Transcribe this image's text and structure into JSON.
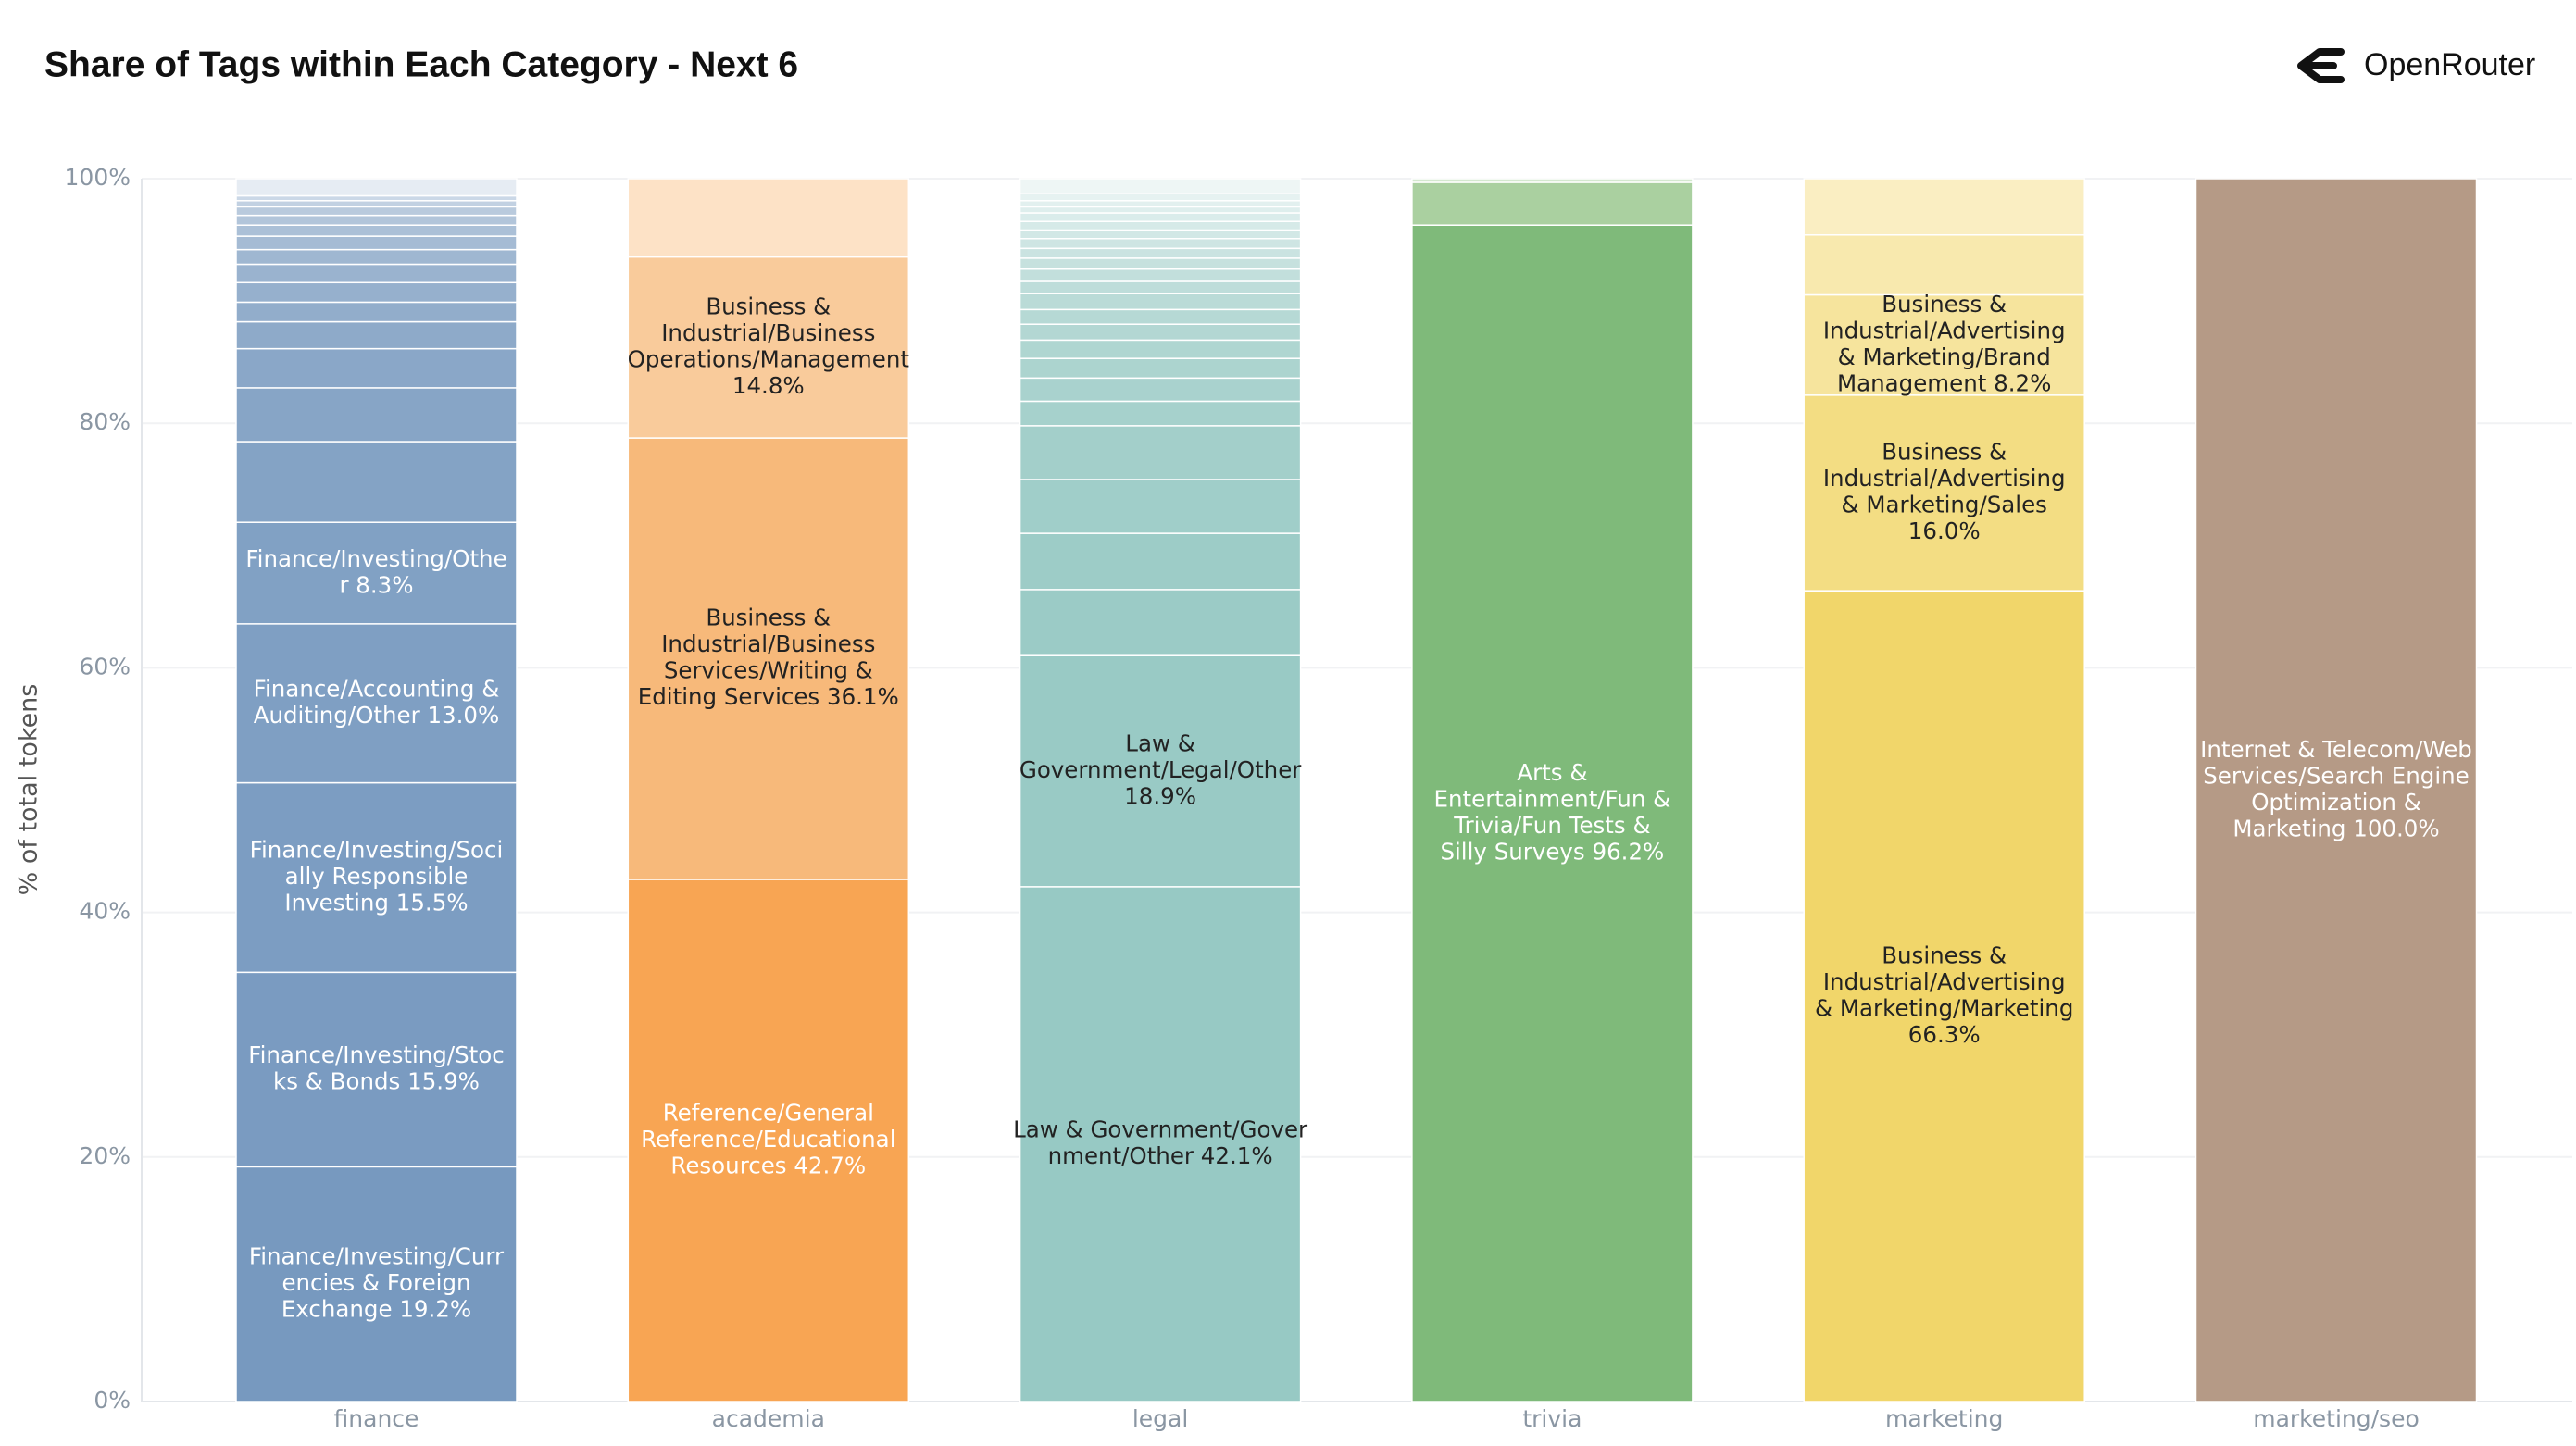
{
  "header": {
    "brand": "OpenRouter"
  },
  "chart_data": {
    "type": "stacked_bar",
    "title": "Share of Tags within Each Category - Next 6",
    "ylabel": "% of total tokens",
    "ylim": [
      0,
      100
    ],
    "yticks": [
      {
        "value": 0,
        "label": "0%"
      },
      {
        "value": 20,
        "label": "20%"
      },
      {
        "value": 40,
        "label": "40%"
      },
      {
        "value": 60,
        "label": "60%"
      },
      {
        "value": 80,
        "label": "80%"
      },
      {
        "value": 100,
        "label": "100%"
      }
    ],
    "grid": true,
    "bars": [
      {
        "category": "finance",
        "segments": [
          {
            "value": 19.2,
            "color": "#7799bf",
            "label_color": "#ffffff",
            "label_lines": [
              "Finance/Investing/Curr",
              "encies & Foreign",
              "Exchange 19.2%"
            ]
          },
          {
            "value": 15.9,
            "color": "#7a9bc1",
            "label_color": "#ffffff",
            "label_lines": [
              "Finance/Investing/Stoc",
              "ks & Bonds 15.9%"
            ]
          },
          {
            "value": 15.5,
            "color": "#7c9dc2",
            "label_color": "#ffffff",
            "label_lines": [
              "Finance/Investing/Soci",
              "ally Responsible",
              "Investing 15.5%"
            ]
          },
          {
            "value": 13.0,
            "color": "#7f9fc3",
            "label_color": "#ffffff",
            "label_lines": [
              "Finance/Accounting &",
              "Auditing/Other 13.0%"
            ]
          },
          {
            "value": 8.3,
            "color": "#81a1c4",
            "label_color": "#ffffff",
            "label_lines": [
              "Finance/Investing/Othe",
              "r 8.3%"
            ]
          },
          {
            "value": 6.6,
            "color": "#84a3c5"
          },
          {
            "value": 4.4,
            "color": "#87a5c6"
          },
          {
            "value": 3.2,
            "color": "#8aa7c8"
          },
          {
            "value": 2.2,
            "color": "#8eaac9"
          },
          {
            "value": 1.6,
            "color": "#92adcb"
          },
          {
            "value": 1.6,
            "color": "#96b0cd"
          },
          {
            "value": 1.5,
            "color": "#9ab3cf"
          },
          {
            "value": 1.2,
            "color": "#9fb7d1"
          },
          {
            "value": 1.1,
            "color": "#a5bbd4"
          },
          {
            "value": 0.9,
            "color": "#abc0d7"
          },
          {
            "value": 0.8,
            "color": "#b2c5da"
          },
          {
            "value": 0.7,
            "color": "#b9cadd"
          },
          {
            "value": 0.5,
            "color": "#c2d1e2"
          },
          {
            "value": 0.4,
            "color": "#cbd8e7"
          },
          {
            "value": 1.4,
            "color": "#e6ecf3"
          }
        ]
      },
      {
        "category": "academia",
        "segments": [
          {
            "value": 42.7,
            "color": "#f8a553",
            "label_color": "#ffffff",
            "label_lines": [
              "Reference/General",
              "Reference/Educational",
              "Resources 42.7%"
            ]
          },
          {
            "value": 36.1,
            "color": "#f7b97a",
            "label_color": "#222222",
            "label_lines": [
              "Business &",
              "Industrial/Business",
              "Services/Writing &",
              "Editing Services 36.1%"
            ]
          },
          {
            "value": 14.8,
            "color": "#f9cb9b",
            "label_color": "#222222",
            "label_lines": [
              "Business &",
              "Industrial/Business",
              "Operations/Management",
              "14.8%"
            ]
          },
          {
            "value": 6.4,
            "color": "#fde2c6"
          }
        ]
      },
      {
        "category": "legal",
        "segments": [
          {
            "value": 42.1,
            "color": "#97c9c4",
            "label_color": "#222222",
            "label_lines": [
              "Law & Government/Gover",
              "nment/Other 42.1%"
            ]
          },
          {
            "value": 18.9,
            "color": "#99cac5",
            "label_color": "#222222",
            "label_lines": [
              "Law &",
              "Government/Legal/Other",
              "18.9%"
            ]
          },
          {
            "value": 5.4,
            "color": "#9bcbc6"
          },
          {
            "value": 4.6,
            "color": "#9dccc7"
          },
          {
            "value": 4.4,
            "color": "#a0cec9"
          },
          {
            "value": 4.4,
            "color": "#a3cfca"
          },
          {
            "value": 2.0,
            "color": "#a6d1cc"
          },
          {
            "value": 1.9,
            "color": "#a9d2ce"
          },
          {
            "value": 1.6,
            "color": "#acd4cf"
          },
          {
            "value": 1.5,
            "color": "#afd6d1"
          },
          {
            "value": 1.3,
            "color": "#b3d7d3"
          },
          {
            "value": 1.2,
            "color": "#b6d9d5"
          },
          {
            "value": 1.3,
            "color": "#badbd7"
          },
          {
            "value": 1.0,
            "color": "#bedddA"
          },
          {
            "value": 1.0,
            "color": "#c2dfdc"
          },
          {
            "value": 0.9,
            "color": "#c6e1de"
          },
          {
            "value": 0.8,
            "color": "#cae3e1"
          },
          {
            "value": 0.8,
            "color": "#cee5e3"
          },
          {
            "value": 0.7,
            "color": "#d2e8e6"
          },
          {
            "value": 0.7,
            "color": "#d6eae8"
          },
          {
            "value": 0.7,
            "color": "#daeceb"
          },
          {
            "value": 0.5,
            "color": "#deeeed"
          },
          {
            "value": 0.5,
            "color": "#e2f0ef"
          },
          {
            "value": 0.6,
            "color": "#e6f2f1"
          },
          {
            "value": 1.2,
            "color": "#eef6f5"
          }
        ]
      },
      {
        "category": "trivia",
        "segments": [
          {
            "value": 96.2,
            "color": "#7fba7a",
            "label_color": "#ffffff",
            "label_lines": [
              "Arts &",
              "Entertainment/Fun &",
              "Trivia/Fun Tests &",
              "Silly Surveys 96.2%"
            ]
          },
          {
            "value": 3.5,
            "color": "#aad0a0"
          },
          {
            "value": 0.3,
            "color": "#d4e8cf"
          }
        ]
      },
      {
        "category": "marketing",
        "segments": [
          {
            "value": 66.3,
            "color": "#f1d66a",
            "label_color": "#222222",
            "label_lines": [
              "Business &",
              "Industrial/Advertising",
              "& Marketing/Marketing",
              "66.3%"
            ]
          },
          {
            "value": 16.0,
            "color": "#f3dd83",
            "label_color": "#222222",
            "label_lines": [
              "Business &",
              "Industrial/Advertising",
              "& Marketing/Sales",
              "16.0%"
            ]
          },
          {
            "value": 8.2,
            "color": "#f6e49d",
            "label_color": "#222222",
            "label_lines": [
              "Business &",
              "Industrial/Advertising",
              "& Marketing/Brand",
              "Management 8.2%"
            ]
          },
          {
            "value": 4.9,
            "color": "#f8e9ae"
          },
          {
            "value": 4.6,
            "color": "#faeec2"
          }
        ]
      },
      {
        "category": "marketing/seo",
        "segments": [
          {
            "value": 100.0,
            "color": "#b59a86",
            "label_color": "#ffffff",
            "label_lines": [
              "Internet & Telecom/Web",
              "Services/Search Engine",
              "Optimization &",
              "Marketing 100.0%"
            ]
          }
        ]
      }
    ]
  }
}
